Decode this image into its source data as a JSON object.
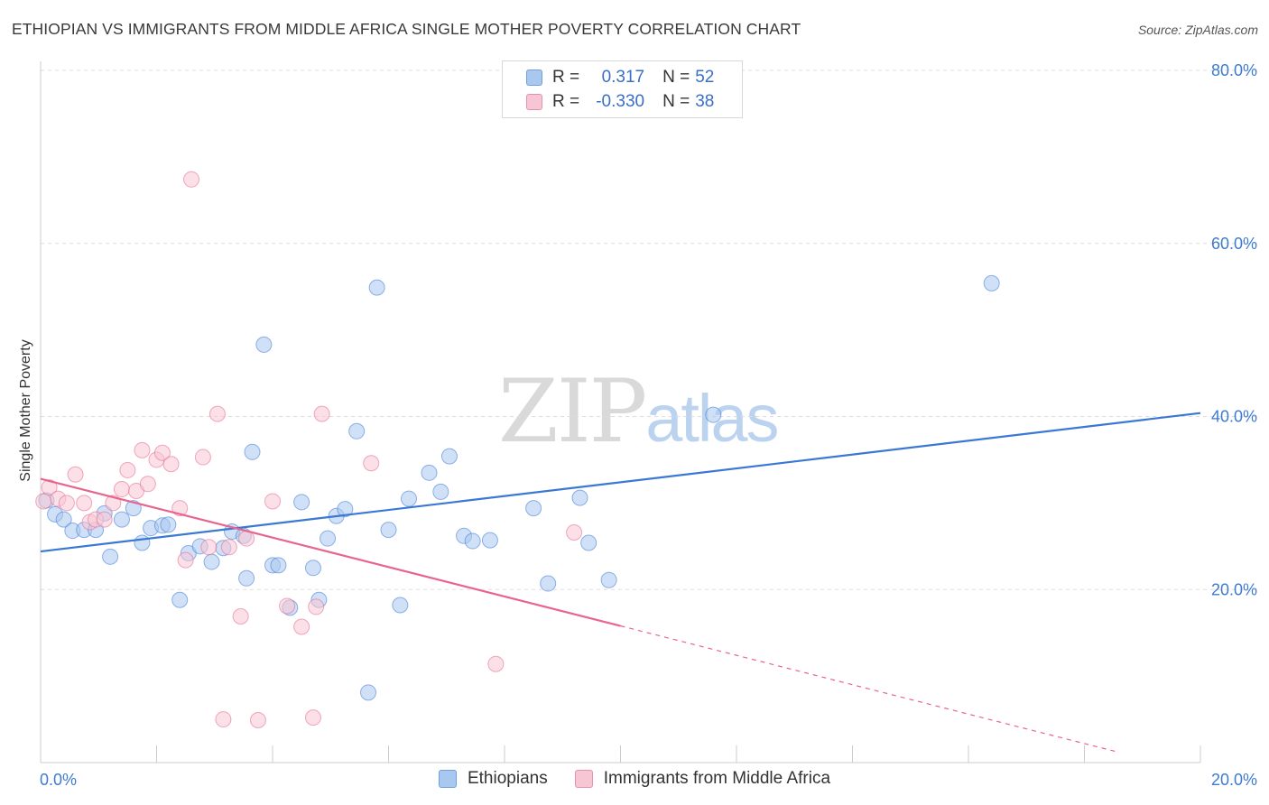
{
  "title": "ETHIOPIAN VS IMMIGRANTS FROM MIDDLE AFRICA SINGLE MOTHER POVERTY CORRELATION CHART",
  "source": "Source: ZipAtlas.com",
  "watermark": {
    "zip": "ZIP",
    "atlas": "atlas"
  },
  "legend": {
    "r_label": "R =",
    "n_label": "N =",
    "rows": [
      {
        "r": "0.317",
        "n": "52",
        "color": "#a9c8f0",
        "border": "#6f9fe0"
      },
      {
        "r": "-0.330",
        "n": "38",
        "color": "#f7c6d4",
        "border": "#e88fab"
      }
    ]
  },
  "bottom_legend": [
    "Ethiopians",
    "Immigrants from Middle Africa"
  ],
  "chart_data": {
    "type": "scatter",
    "title": "ETHIOPIAN VS IMMIGRANTS FROM MIDDLE AFRICA SINGLE MOTHER POVERTY CORRELATION CHART",
    "xlabel": "",
    "ylabel": "Single Mother Poverty",
    "xlim": [
      0,
      20
    ],
    "ylim": [
      0,
      80
    ],
    "x_tick_labels": [
      "0.0%",
      "20.0%"
    ],
    "y_tick_labels": [
      "20.0%",
      "40.0%",
      "60.0%",
      "80.0%"
    ],
    "y_ticks": [
      20,
      40,
      60,
      80
    ],
    "grid": "horizontal dashed",
    "legend_position": "top-center",
    "series": [
      {
        "name": "Ethiopians",
        "color": "#3a78d4",
        "fill": "#a9c8f0",
        "trend": {
          "x": [
            0,
            20
          ],
          "y": [
            24.4,
            40.4
          ],
          "dashed_from": null
        },
        "points": [
          [
            0.1,
            30.3
          ],
          [
            0.25,
            28.7
          ],
          [
            0.4,
            28.1
          ],
          [
            0.55,
            26.8
          ],
          [
            0.75,
            26.9
          ],
          [
            0.95,
            26.9
          ],
          [
            1.1,
            28.8
          ],
          [
            1.2,
            23.8
          ],
          [
            1.4,
            28.1
          ],
          [
            1.6,
            29.4
          ],
          [
            1.75,
            25.4
          ],
          [
            1.9,
            27.1
          ],
          [
            2.1,
            27.4
          ],
          [
            2.2,
            27.5
          ],
          [
            2.4,
            18.8
          ],
          [
            2.55,
            24.2
          ],
          [
            2.75,
            25.0
          ],
          [
            2.95,
            23.2
          ],
          [
            3.15,
            24.8
          ],
          [
            3.3,
            26.7
          ],
          [
            3.5,
            26.2
          ],
          [
            3.55,
            21.3
          ],
          [
            3.65,
            35.9
          ],
          [
            3.85,
            48.3
          ],
          [
            4.0,
            22.8
          ],
          [
            4.1,
            22.8
          ],
          [
            4.3,
            17.9
          ],
          [
            4.5,
            30.1
          ],
          [
            4.7,
            22.5
          ],
          [
            4.8,
            18.8
          ],
          [
            4.95,
            25.9
          ],
          [
            5.1,
            28.5
          ],
          [
            5.25,
            29.3
          ],
          [
            5.45,
            38.3
          ],
          [
            5.65,
            8.1
          ],
          [
            5.8,
            54.9
          ],
          [
            6.0,
            26.9
          ],
          [
            6.2,
            18.2
          ],
          [
            6.35,
            30.5
          ],
          [
            6.7,
            33.5
          ],
          [
            6.9,
            31.3
          ],
          [
            7.05,
            35.4
          ],
          [
            7.3,
            26.2
          ],
          [
            7.45,
            25.6
          ],
          [
            7.75,
            25.7
          ],
          [
            8.5,
            29.4
          ],
          [
            8.75,
            20.7
          ],
          [
            9.3,
            30.6
          ],
          [
            9.45,
            25.4
          ],
          [
            9.8,
            21.1
          ],
          [
            11.6,
            40.2
          ],
          [
            16.4,
            55.4
          ]
        ]
      },
      {
        "name": "Immigrants from Middle Africa",
        "color": "#e8648e",
        "fill": "#f7c6d4",
        "trend": {
          "x": [
            0,
            22
          ],
          "y": [
            32.8,
            -4.6
          ],
          "dashed_from": 10.0
        },
        "points": [
          [
            0.15,
            31.8
          ],
          [
            0.3,
            30.5
          ],
          [
            0.45,
            30.0
          ],
          [
            0.6,
            33.3
          ],
          [
            0.75,
            30.0
          ],
          [
            0.85,
            27.8
          ],
          [
            0.95,
            28.1
          ],
          [
            1.1,
            28.1
          ],
          [
            1.25,
            30.0
          ],
          [
            1.4,
            31.6
          ],
          [
            1.5,
            33.8
          ],
          [
            1.65,
            31.4
          ],
          [
            1.75,
            36.1
          ],
          [
            1.85,
            32.2
          ],
          [
            2.0,
            35.0
          ],
          [
            2.1,
            35.8
          ],
          [
            2.25,
            34.5
          ],
          [
            2.4,
            29.4
          ],
          [
            2.5,
            23.4
          ],
          [
            2.6,
            67.4
          ],
          [
            2.8,
            35.3
          ],
          [
            2.9,
            24.9
          ],
          [
            3.05,
            40.3
          ],
          [
            3.15,
            5.0
          ],
          [
            3.25,
            24.9
          ],
          [
            3.45,
            16.9
          ],
          [
            3.55,
            25.9
          ],
          [
            3.75,
            4.9
          ],
          [
            4.0,
            30.2
          ],
          [
            4.25,
            18.1
          ],
          [
            4.5,
            15.7
          ],
          [
            4.7,
            5.2
          ],
          [
            4.75,
            18.0
          ],
          [
            4.85,
            40.3
          ],
          [
            5.7,
            34.6
          ],
          [
            7.85,
            11.4
          ],
          [
            9.2,
            26.6
          ],
          [
            0.05,
            30.2
          ]
        ]
      }
    ]
  }
}
